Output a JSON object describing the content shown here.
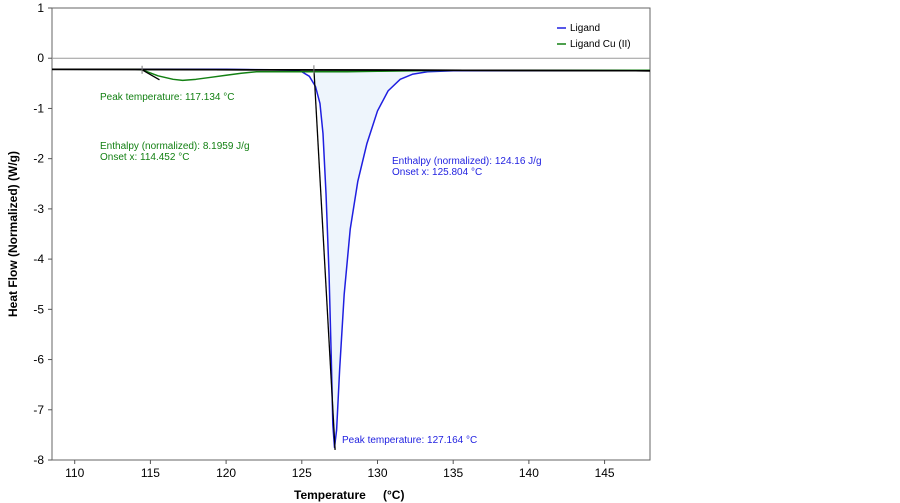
{
  "chart_data": {
    "type": "line",
    "title": "",
    "xlabel": "Temperature",
    "xunit": "(°C)",
    "ylabel": "Heat Flow (Normalized)  (W/g)",
    "xlim": [
      108.5,
      148
    ],
    "ylim": [
      -8,
      1
    ],
    "x_ticks": [
      "110",
      "115",
      "120",
      "125",
      "130",
      "135",
      "140",
      "145"
    ],
    "y_ticks": [
      "1",
      "0",
      "-1",
      "-2",
      "-3",
      "-4",
      "-5",
      "-6",
      "-7",
      "-8"
    ],
    "grid": false,
    "legend_position": "top-right",
    "series": [
      {
        "name": "Ligand",
        "color": "#1f1fe0",
        "x": [
          108.5,
          112,
          116,
          120,
          123,
          124.5,
          125,
          125.5,
          125.9,
          126.2,
          126.4,
          126.6,
          126.8,
          126.95,
          127.05,
          127.16,
          127.3,
          127.5,
          127.8,
          128.2,
          128.7,
          129.3,
          130,
          130.7,
          131.5,
          132.3,
          133.3,
          135,
          140,
          148
        ],
        "y": [
          -0.22,
          -0.22,
          -0.22,
          -0.22,
          -0.23,
          -0.24,
          -0.27,
          -0.36,
          -0.56,
          -0.9,
          -1.5,
          -2.7,
          -4.3,
          -6.0,
          -7.3,
          -7.75,
          -7.4,
          -6.2,
          -4.7,
          -3.4,
          -2.45,
          -1.7,
          -1.05,
          -0.65,
          -0.42,
          -0.32,
          -0.27,
          -0.25,
          -0.25,
          -0.25
        ]
      },
      {
        "name": "Ligand Cu (II)",
        "color": "#138013",
        "x": [
          108.5,
          112,
          114,
          114.45,
          115.5,
          116.5,
          117.13,
          118,
          119,
          120,
          121,
          122,
          123,
          124,
          125,
          126,
          128,
          130,
          135,
          140,
          148
        ],
        "y": [
          -0.22,
          -0.22,
          -0.22,
          -0.23,
          -0.35,
          -0.42,
          -0.44,
          -0.42,
          -0.38,
          -0.34,
          -0.3,
          -0.27,
          -0.27,
          -0.27,
          -0.27,
          -0.27,
          -0.27,
          -0.26,
          -0.24,
          -0.24,
          -0.24
        ]
      }
    ],
    "baselines": [
      {
        "series": "Ligand",
        "x": [
          108.5,
          148
        ],
        "y": [
          -0.22,
          -0.25
        ],
        "color": "#000000"
      },
      {
        "series": "Ligand Cu (II)",
        "x": [
          108.5,
          148
        ],
        "y": [
          -0.22,
          -0.25
        ],
        "color": "#000000"
      }
    ],
    "onset_tangents": [
      {
        "series": "Ligand",
        "x": [
          125.8,
          127.2
        ],
        "y": [
          -0.22,
          -7.8
        ],
        "color": "#000000"
      },
      {
        "series": "Ligand Cu (II)",
        "x": [
          114.45,
          115.6
        ],
        "y": [
          -0.23,
          -0.43
        ],
        "color": "#000000"
      }
    ],
    "shaded_peak": {
      "series": "Ligand",
      "x_from": 125.8,
      "x_to": 134.5,
      "fill": "#eef5fc"
    },
    "markers": [
      {
        "series": "Ligand",
        "x": 125.8,
        "y": -0.22
      },
      {
        "series": "Ligand Cu (II)",
        "x": 114.45,
        "y": -0.23
      }
    ],
    "annotations": [
      {
        "series": "Ligand Cu (II)",
        "color": "#138013",
        "lines": [
          "Peak temperature: 117.134 °C"
        ]
      },
      {
        "series": "Ligand Cu (II)",
        "color": "#138013",
        "lines": [
          "Enthalpy (normalized): 8.1959 J/g",
          "Onset x: 114.452 °C"
        ]
      },
      {
        "series": "Ligand",
        "color": "#1f1fe0",
        "lines": [
          "Enthalpy (normalized): 124.16 J/g",
          "Onset x: 125.804 °C"
        ]
      },
      {
        "series": "Ligand",
        "color": "#1f1fe0",
        "lines": [
          "Peak temperature: 127.164 °C"
        ]
      }
    ]
  }
}
